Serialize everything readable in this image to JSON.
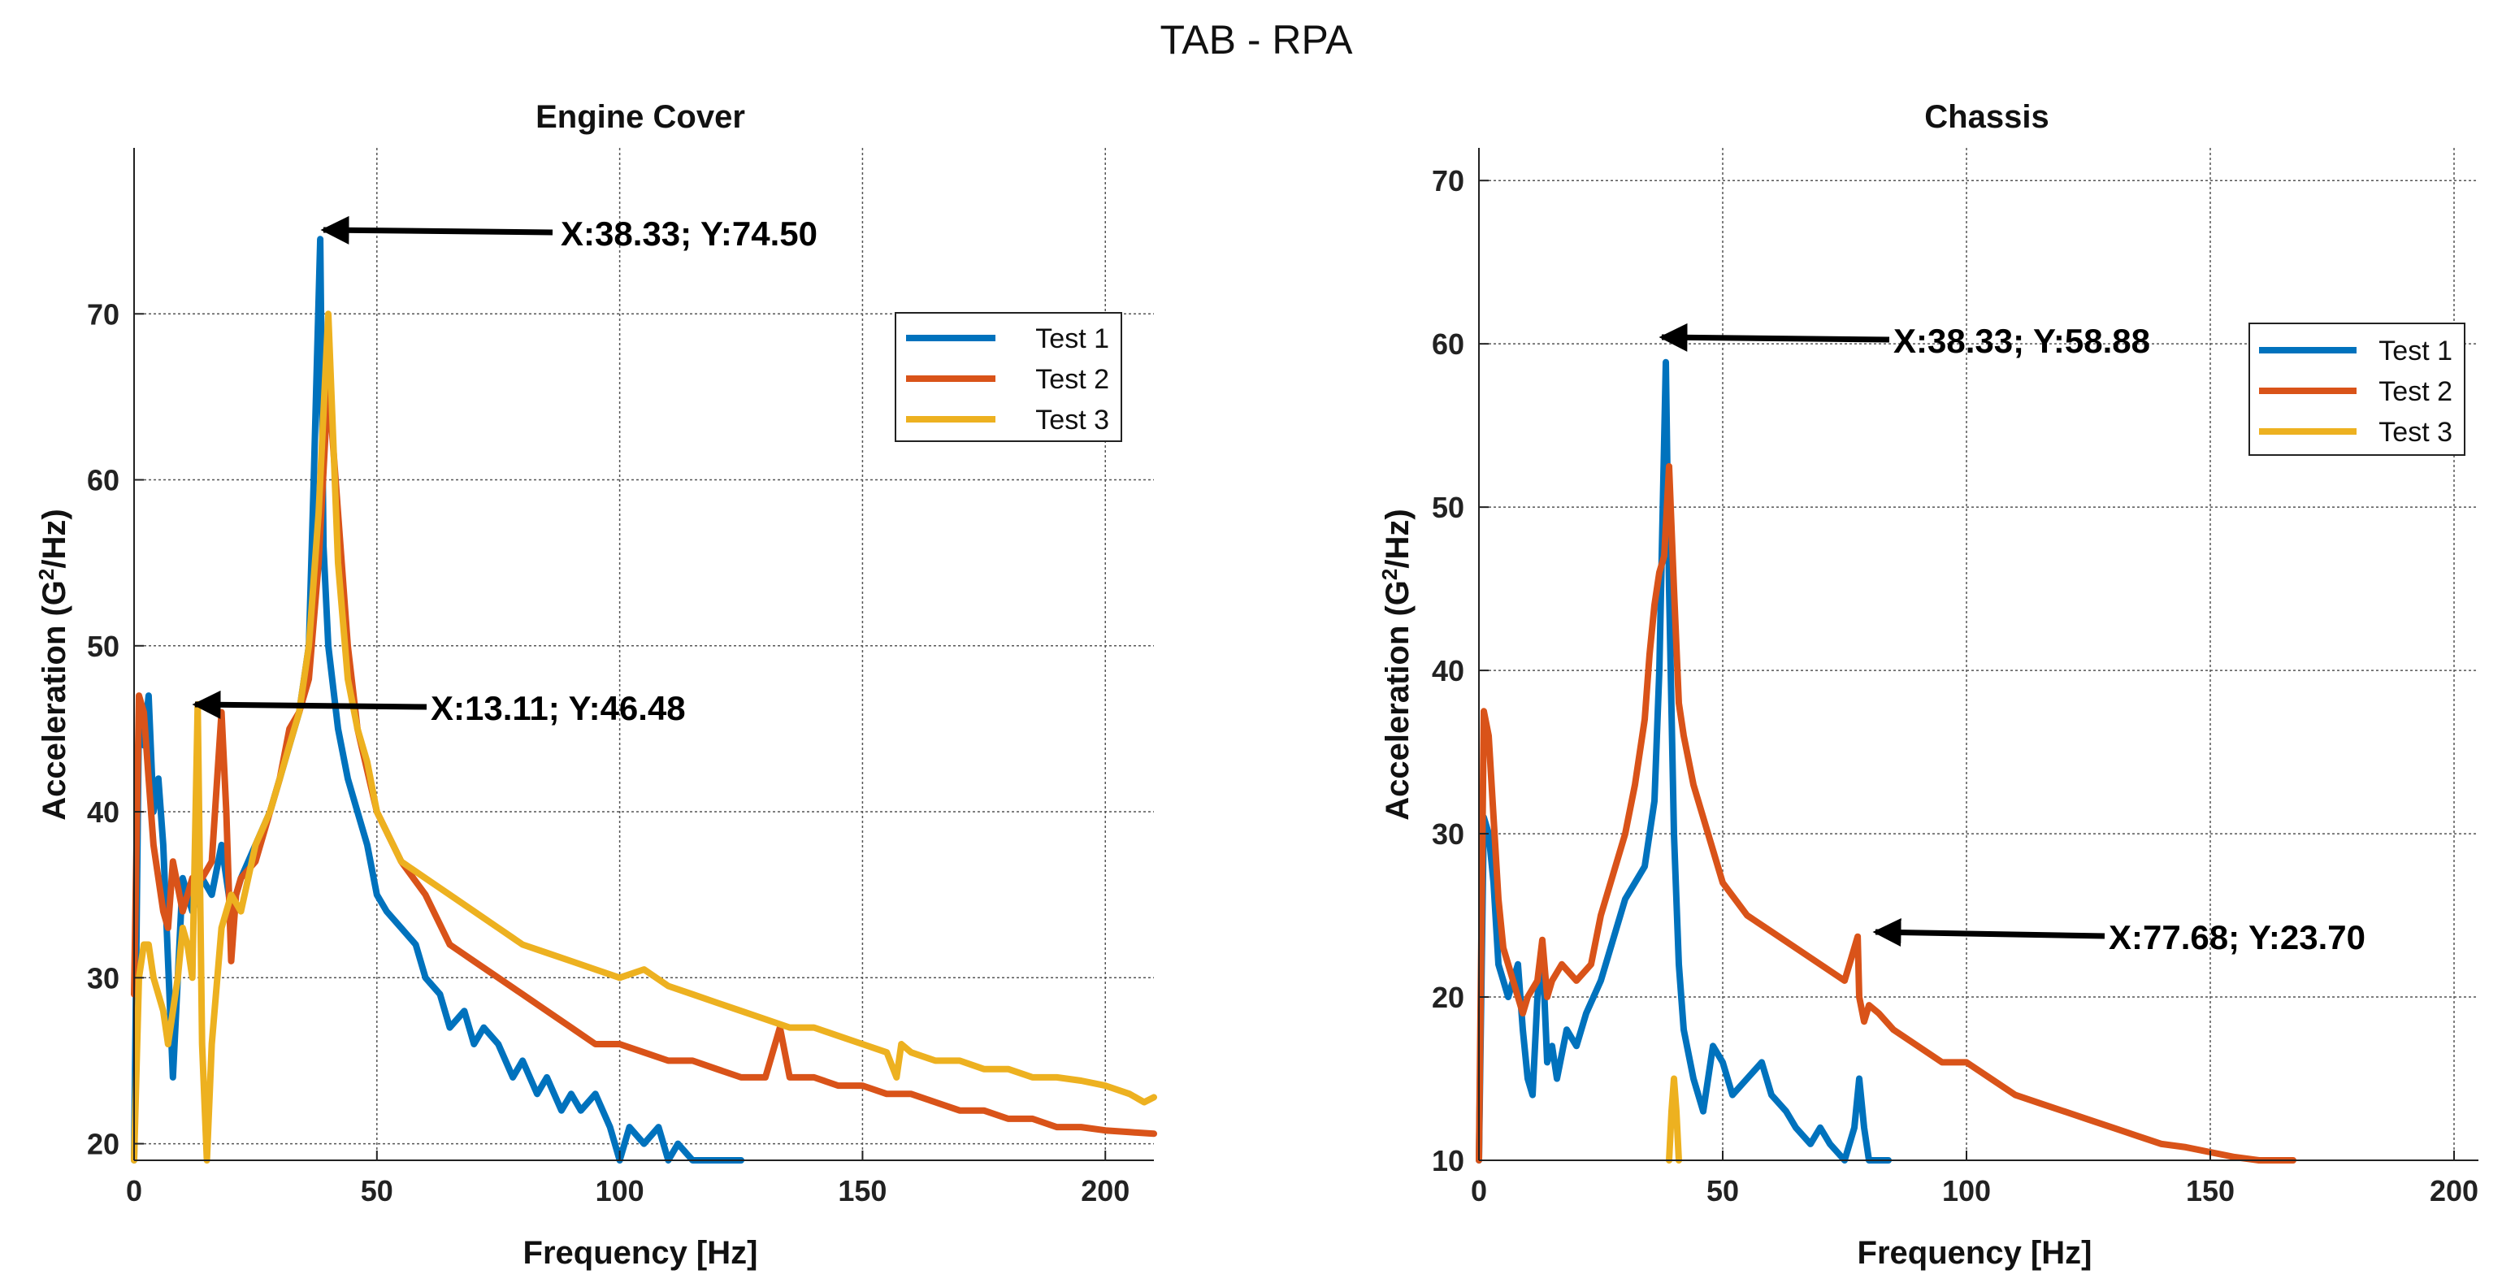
{
  "figure": {
    "suptitle": "TAB - RPA"
  },
  "colors": {
    "test1": "#0072BD",
    "test2": "#D95319",
    "test3": "#EDB120"
  },
  "chart_data": [
    {
      "type": "line",
      "title": "Engine Cover",
      "xlabel": "Frequency [Hz]",
      "ylabel": "Acceleration (G²/Hz)",
      "ylabel_main": "Acceleration (G",
      "ylabel_sup": "2",
      "ylabel_tail": "/Hz)",
      "xlim": [
        0,
        210
      ],
      "ylim": [
        19,
        80
      ],
      "xticks": [
        0,
        50,
        100,
        150,
        200
      ],
      "yticks": [
        20,
        30,
        40,
        50,
        60,
        70
      ],
      "grid": true,
      "legend": {
        "position": "top-right",
        "entries": [
          "Test 1",
          "Test 2",
          "Test 3"
        ]
      },
      "series": [
        {
          "name": "Test 1",
          "color": "#0072BD",
          "x": [
            0,
            1,
            2,
            3,
            4,
            5,
            6,
            7,
            8,
            9,
            10,
            12,
            14,
            16,
            18,
            20,
            22,
            25,
            28,
            30,
            32,
            34,
            36,
            37,
            38.33,
            39,
            40,
            42,
            44,
            46,
            48,
            50,
            52,
            55,
            58,
            60,
            63,
            65,
            68,
            70,
            72,
            75,
            78,
            80,
            83,
            85,
            88,
            90,
            92,
            95,
            98,
            100,
            102,
            105,
            108,
            110,
            112,
            115,
            118,
            120,
            122,
            125
          ],
          "y": [
            19,
            46,
            44,
            47,
            40,
            42,
            38,
            31,
            24,
            30,
            36,
            34,
            36,
            35,
            38,
            34,
            36,
            38,
            40,
            42,
            44,
            46,
            50,
            60,
            74.5,
            56,
            50,
            45,
            42,
            40,
            38,
            35,
            34,
            33,
            32,
            30,
            29,
            27,
            28,
            26,
            27,
            26,
            24,
            25,
            23,
            24,
            22,
            23,
            22,
            23,
            21,
            19,
            21,
            20,
            21,
            19,
            20,
            18,
            19,
            17,
            18,
            17
          ]
        },
        {
          "name": "Test 2",
          "color": "#D95319",
          "x": [
            0,
            1,
            2,
            3,
            4,
            5,
            6,
            7,
            8,
            10,
            12,
            14,
            16,
            18,
            19,
            20,
            21,
            22,
            25,
            28,
            30,
            32,
            34,
            36,
            38,
            40,
            42,
            44,
            46,
            50,
            55,
            60,
            65,
            70,
            75,
            80,
            85,
            90,
            95,
            100,
            105,
            110,
            115,
            120,
            125,
            130,
            133,
            135,
            140,
            145,
            150,
            155,
            160,
            165,
            170,
            175,
            180,
            185,
            190,
            195,
            200,
            205,
            210
          ],
          "y": [
            29,
            47,
            46,
            42,
            38,
            36,
            34,
            33,
            37,
            34,
            36,
            36,
            37,
            46,
            40,
            31,
            35,
            36,
            37,
            40,
            42,
            45,
            46,
            48,
            55,
            66,
            58,
            50,
            45,
            40,
            37,
            35,
            32,
            31,
            30,
            29,
            28,
            27,
            26,
            26,
            25.5,
            25,
            25,
            24.5,
            24,
            24,
            27,
            24,
            24,
            23.5,
            23.5,
            23,
            23,
            22.5,
            22,
            22,
            21.5,
            21.5,
            21,
            21,
            20.8,
            20.7,
            20.6
          ]
        },
        {
          "name": "Test 3",
          "color": "#EDB120",
          "x": [
            0,
            1,
            2,
            3,
            4,
            6,
            7,
            8,
            9,
            10,
            11,
            12,
            13.11,
            14,
            15,
            16,
            18,
            20,
            22,
            25,
            28,
            30,
            32,
            34,
            36,
            38,
            40,
            42,
            44,
            46,
            48,
            50,
            55,
            60,
            65,
            70,
            75,
            80,
            85,
            90,
            95,
            100,
            105,
            110,
            115,
            120,
            125,
            130,
            135,
            140,
            145,
            150,
            155,
            157,
            158,
            160,
            165,
            170,
            175,
            180,
            185,
            190,
            195,
            200,
            205,
            208,
            210
          ],
          "y": [
            19,
            30,
            32,
            32,
            30,
            28,
            26,
            28,
            30,
            33,
            32,
            30,
            46.48,
            26,
            19,
            26,
            33,
            35,
            34,
            38,
            40,
            42,
            44,
            46,
            50,
            58,
            70,
            55,
            48,
            45,
            43,
            40,
            37,
            36,
            35,
            34,
            33,
            32,
            31.5,
            31,
            30.5,
            30,
            30.5,
            29.5,
            29,
            28.5,
            28,
            27.5,
            27,
            27,
            26.5,
            26,
            25.5,
            24,
            26,
            25.5,
            25,
            25,
            24.5,
            24.5,
            24,
            24,
            23.8,
            23.5,
            23,
            22.5,
            22.8
          ]
        }
      ],
      "annotations": [
        {
          "text": "X:38.33; Y:74.50",
          "x": 38.33,
          "y": 74.5
        },
        {
          "text": "X:13.11; Y:46.48",
          "x": 13.11,
          "y": 46.48
        }
      ]
    },
    {
      "type": "line",
      "title": "Chassis",
      "xlabel": "Frequency [Hz]",
      "ylabel": "Acceleration (G²/Hz)",
      "ylabel_main": "Acceleration (G",
      "ylabel_sup": "2",
      "ylabel_tail": "/Hz)",
      "xlim": [
        0,
        205
      ],
      "ylim": [
        10,
        72
      ],
      "xticks": [
        0,
        50,
        100,
        150,
        200
      ],
      "yticks": [
        10,
        20,
        30,
        40,
        50,
        60,
        70
      ],
      "grid": true,
      "legend": {
        "position": "top-right",
        "entries": [
          "Test 1",
          "Test 2",
          "Test 3"
        ]
      },
      "series": [
        {
          "name": "Test 1",
          "color": "#0072BD",
          "x": [
            0,
            1,
            2,
            3,
            4,
            5,
            6,
            7,
            8,
            9,
            10,
            11,
            12,
            13,
            14,
            15,
            16,
            18,
            20,
            22,
            25,
            28,
            30,
            32,
            34,
            36,
            37,
            38.33,
            39,
            40,
            41,
            42,
            44,
            46,
            48,
            50,
            52,
            55,
            58,
            60,
            63,
            65,
            68,
            70,
            72,
            75,
            77,
            78,
            79,
            80,
            82,
            84
          ],
          "y": [
            10,
            31,
            30,
            27,
            22,
            21,
            20,
            21,
            22,
            18,
            15,
            14,
            20,
            23,
            16,
            17,
            15,
            18,
            17,
            19,
            21,
            24,
            26,
            27,
            28,
            32,
            40,
            58.88,
            45,
            30,
            22,
            18,
            15,
            13,
            17,
            16,
            14,
            15,
            16,
            14,
            13,
            12,
            11,
            12,
            11,
            10,
            12,
            15,
            12,
            10,
            10,
            10
          ]
        },
        {
          "name": "Test 2",
          "color": "#D95319",
          "x": [
            0,
            1,
            2,
            3,
            4,
            5,
            6,
            7,
            8,
            9,
            10,
            12,
            13,
            14,
            15,
            17,
            20,
            23,
            25,
            28,
            30,
            32,
            34,
            35,
            36,
            37,
            38,
            39,
            40,
            41,
            42,
            44,
            46,
            48,
            50,
            55,
            60,
            65,
            70,
            75,
            77.68,
            78,
            79,
            80,
            82,
            85,
            90,
            95,
            100,
            105,
            110,
            115,
            120,
            125,
            130,
            135,
            140,
            145,
            150,
            155,
            160,
            167
          ],
          "y": [
            10,
            37.5,
            36,
            31,
            26,
            23,
            22,
            21,
            20,
            19,
            20,
            21,
            23.5,
            20,
            21,
            22,
            21,
            22,
            25,
            28,
            30,
            33,
            37,
            41,
            44,
            46,
            47,
            52.5,
            45,
            38,
            36,
            33,
            31,
            29,
            27,
            25,
            24,
            23,
            22,
            21,
            23.7,
            20,
            18.5,
            19.5,
            19,
            18,
            17,
            16,
            16,
            15,
            14,
            13.5,
            13,
            12.5,
            12,
            11.5,
            11,
            10.8,
            10.5,
            10.2,
            10,
            10
          ]
        },
        {
          "name": "Test 3",
          "color": "#EDB120",
          "x": [
            39,
            39.5,
            40,
            40.5,
            41
          ],
          "y": [
            10,
            13,
            15,
            13,
            10
          ]
        }
      ],
      "annotations": [
        {
          "text": "X:38.33; Y:58.88",
          "x": 38.33,
          "y": 58.88
        },
        {
          "text": "X:77.68; Y:23.70",
          "x": 77.68,
          "y": 23.7
        }
      ]
    }
  ]
}
